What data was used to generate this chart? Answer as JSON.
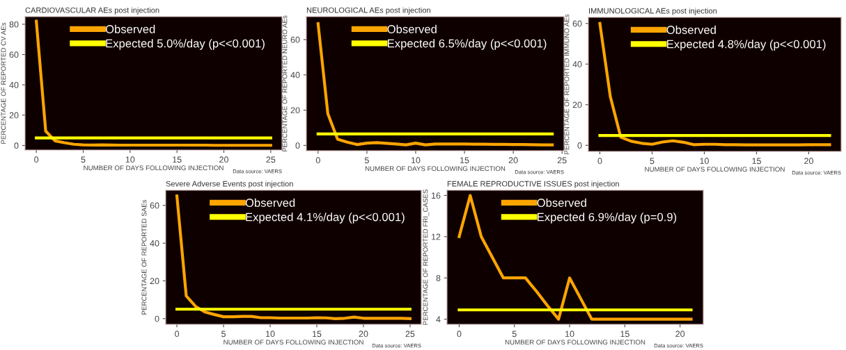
{
  "chart_data": [
    {
      "type": "line",
      "title": "CARDIOVASCULAR AEs post injection",
      "xlabel": "NUMBER OF DAYS FOLLOWING INJECTION",
      "ylabel": "PERCENTAGE OF REPORTED CV AEs",
      "annotations": [
        "Data source: VAERS"
      ],
      "xlim": [
        -1.2,
        26.2
      ],
      "xticks": [
        0,
        5,
        10,
        15,
        20,
        25
      ],
      "ylim": [
        -3,
        85
      ],
      "yticks": [
        0,
        20,
        40,
        60,
        80
      ],
      "legend": "top",
      "grid": false,
      "marker": "none",
      "line_style": "solid",
      "series": [
        {
          "name": "Observed",
          "color": "#ffa500",
          "x": [
            0,
            1,
            2,
            3,
            4,
            5,
            6,
            7,
            8,
            9,
            10,
            11,
            12,
            13,
            14,
            15,
            16,
            17,
            18,
            19,
            20,
            21,
            22,
            23,
            24,
            25
          ],
          "values": [
            82,
            9.5,
            3,
            1.8,
            0.8,
            0.4,
            0.3,
            0.4,
            0.3,
            0.2,
            0.2,
            0.2,
            0.2,
            0.2,
            0.2,
            0.2,
            0.2,
            0.2,
            0.2,
            0.1,
            0.1,
            0.1,
            0.1,
            0.1,
            0.1,
            0.1
          ]
        },
        {
          "name": "Expected 5.0%/day (p<<0.001)",
          "color": "#ffff00",
          "x": [
            0,
            25
          ],
          "values": [
            5,
            5
          ]
        }
      ]
    },
    {
      "type": "line",
      "title": "NEUROLOGICAL AEs post injection",
      "xlabel": "NUMBER OF DAYS FOLLOWING INJECTION",
      "ylabel": "PERCENTAGE OF REPORTED NEURO AEs",
      "annotations": [
        "Data source: VAERS"
      ],
      "xlim": [
        -1.2,
        25.2
      ],
      "xticks": [
        0,
        5,
        10,
        15,
        20,
        25
      ],
      "ylim": [
        -3,
        73
      ],
      "yticks": [
        0,
        20,
        40,
        60
      ],
      "legend": "top",
      "grid": false,
      "marker": "none",
      "line_style": "solid",
      "series": [
        {
          "name": "Observed",
          "color": "#ffa500",
          "x": [
            0,
            1,
            2,
            3,
            4,
            5,
            6,
            7,
            8,
            9,
            10,
            11,
            12,
            13,
            14,
            15,
            16,
            17,
            18,
            19,
            20,
            21,
            22,
            23,
            24
          ],
          "values": [
            69,
            18,
            3.5,
            1.8,
            0.5,
            1.3,
            1.6,
            1.2,
            0.8,
            0.3,
            1.3,
            0.3,
            0.8,
            0.8,
            0.8,
            0.8,
            0.7,
            0.7,
            0.6,
            0.6,
            0.5,
            0.5,
            0.4,
            0.3,
            0.3
          ]
        },
        {
          "name": "Expected 6.5%/day (p<<0.001)",
          "color": "#ffff00",
          "x": [
            0,
            24
          ],
          "values": [
            6.5,
            6.5
          ]
        }
      ]
    },
    {
      "type": "line",
      "title": "IMMUNOLOGICAL AEs post injection",
      "xlabel": "NUMBER OF DAYS FOLLOWING INJECTION",
      "ylabel": "PERCENTAGE OF REPORTED IMMUNO AEs",
      "annotations": [
        "Data source: VAERS"
      ],
      "xlim": [
        -1.1,
        23.1
      ],
      "xticks": [
        0,
        5,
        10,
        15,
        20
      ],
      "ylim": [
        -3,
        63
      ],
      "yticks": [
        0,
        20,
        40,
        60
      ],
      "legend": "top",
      "grid": false,
      "marker": "none",
      "line_style": "solid",
      "series": [
        {
          "name": "Observed",
          "color": "#ffa500",
          "x": [
            0,
            1,
            2,
            3,
            4,
            5,
            6,
            7,
            8,
            9,
            10,
            11,
            12,
            13,
            14,
            15,
            16,
            17,
            18,
            19,
            20,
            21,
            22
          ],
          "values": [
            60,
            24,
            4,
            2,
            1,
            0.5,
            1.6,
            2.2,
            1.5,
            0.3,
            0.5,
            0.5,
            0.3,
            0.3,
            0.2,
            0.2,
            0.2,
            0.2,
            0.2,
            0.2,
            0.3,
            0.3,
            0.3
          ]
        },
        {
          "name": "Expected 4.8%/day (p<<0.001)",
          "color": "#ffff00",
          "x": [
            0,
            22
          ],
          "values": [
            4.8,
            4.8
          ]
        }
      ]
    },
    {
      "type": "line",
      "title": "Severe Adverse Events post injection",
      "xlabel": "NUMBER OF DAYS FOLLOWING INJECTION",
      "ylabel": "PERCENTAGE OF REPORTED SAEs",
      "annotations": [
        "Data source: VAERS"
      ],
      "xlim": [
        -1.2,
        26.2
      ],
      "xticks": [
        0,
        5,
        10,
        15,
        20,
        25
      ],
      "ylim": [
        -3,
        68
      ],
      "yticks": [
        0,
        20,
        40,
        60
      ],
      "legend": "top",
      "grid": false,
      "marker": "none",
      "line_style": "solid",
      "series": [
        {
          "name": "Observed",
          "color": "#ffa500",
          "x": [
            0,
            1,
            2,
            3,
            4,
            5,
            6,
            7,
            8,
            9,
            10,
            11,
            12,
            13,
            14,
            15,
            16,
            17,
            18,
            19,
            20,
            21,
            22,
            23,
            24,
            25
          ],
          "values": [
            65,
            12,
            6.5,
            3.5,
            2.2,
            1,
            1,
            1.2,
            1.2,
            0.5,
            0.5,
            0.3,
            0.3,
            0.3,
            0.3,
            0.5,
            0.4,
            0,
            0.2,
            0.8,
            0.2,
            0.2,
            0.2,
            0.2,
            0.2,
            0
          ]
        },
        {
          "name": "Expected 4.1%/day (p<<0.001)",
          "color": "#ffff00",
          "x": [
            0,
            25
          ],
          "values": [
            5,
            5
          ]
        }
      ]
    },
    {
      "type": "line",
      "title": "FEMALE REPRODUCTIVE ISSUES post injection",
      "xlabel": "NUMBER OF DAYS FOLLOWING INJECTION",
      "ylabel": "PERCENTAGE OF REPORTED FRI_CASES",
      "annotations": [
        "Data source: VAERS"
      ],
      "xlim": [
        -1.1,
        22.1
      ],
      "xticks": [
        0,
        5,
        10,
        15,
        20
      ],
      "ylim": [
        3.5,
        16.5
      ],
      "yticks": [
        4,
        8,
        12,
        16
      ],
      "legend": "top",
      "grid": false,
      "marker": "none",
      "line_style": "solid",
      "series": [
        {
          "name": "Observed",
          "color": "#ffa500",
          "x": [
            0,
            1,
            2,
            3,
            4,
            5,
            6,
            7,
            8,
            9,
            10,
            11,
            12,
            13,
            14,
            15,
            16,
            17,
            18,
            19,
            20,
            21
          ],
          "values": [
            12,
            16,
            12,
            10,
            8,
            8,
            8,
            6.7,
            5.3,
            4,
            8,
            6,
            4,
            4,
            4,
            4,
            4,
            4,
            4,
            4,
            4,
            4
          ]
        },
        {
          "name": "Expected 6.9%/day (p=0.9)",
          "color": "#ffff00",
          "x": [
            0,
            21
          ],
          "values": [
            4.9,
            4.9
          ]
        }
      ]
    }
  ]
}
